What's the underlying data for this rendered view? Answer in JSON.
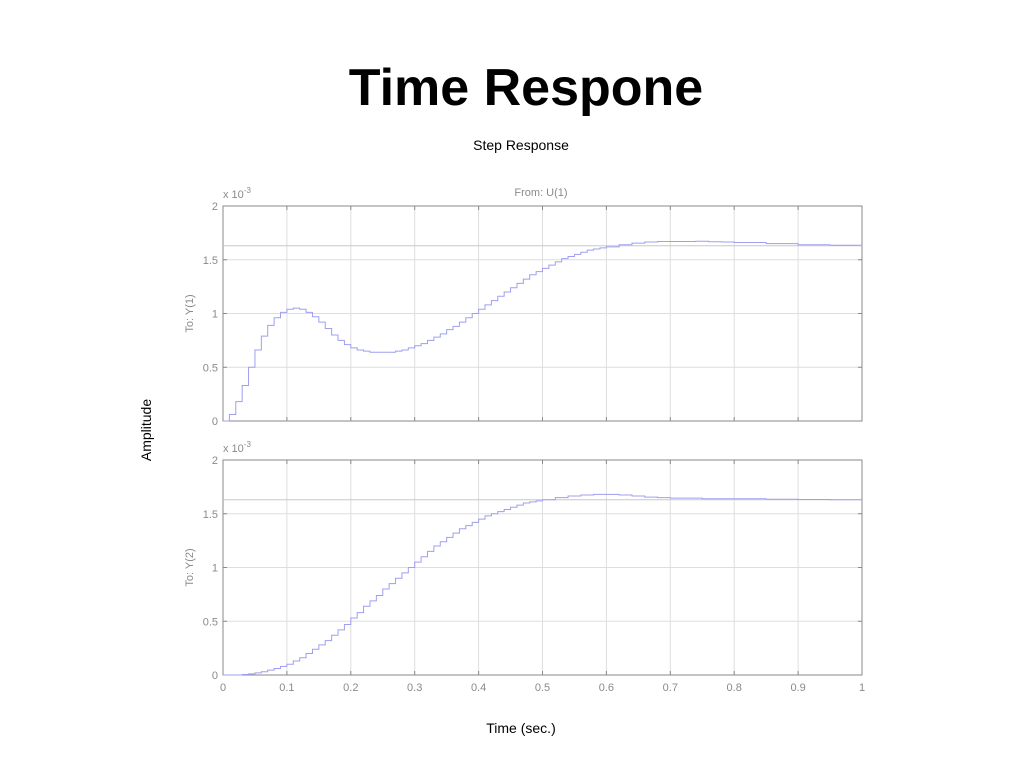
{
  "slide": {
    "title": "Time Respone"
  },
  "chart_data": {
    "type": "line",
    "style": "step",
    "title": "Step Response",
    "xlabel": "Time (sec.)",
    "ylabel": "Amplitude",
    "from_label": "From: U(1)",
    "exponent_label": "x 10",
    "exponent_power": "-3",
    "xlim": [
      0,
      1
    ],
    "xticks": [
      "0",
      "0.1",
      "0.2",
      "0.3",
      "0.4",
      "0.5",
      "0.6",
      "0.7",
      "0.8",
      "0.9",
      "1"
    ],
    "ylim": [
      0,
      2
    ],
    "yticks": [
      "0",
      "0.5",
      "1",
      "1.5",
      "2"
    ],
    "y_scale": "x 10^-3",
    "grid": true,
    "colors": {
      "series": "#9f9ff0",
      "grid": "#dedede",
      "axis": "#8a8a8a",
      "reference": "#c8c8c8"
    },
    "series": [
      {
        "name": "To: Y(1)",
        "steady_state": 1.63,
        "x": [
          0,
          0.01,
          0.02,
          0.03,
          0.04,
          0.05,
          0.06,
          0.07,
          0.08,
          0.09,
          0.1,
          0.11,
          0.12,
          0.13,
          0.14,
          0.15,
          0.16,
          0.17,
          0.18,
          0.19,
          0.2,
          0.21,
          0.22,
          0.23,
          0.24,
          0.25,
          0.26,
          0.27,
          0.28,
          0.29,
          0.3,
          0.31,
          0.32,
          0.33,
          0.34,
          0.35,
          0.36,
          0.37,
          0.38,
          0.39,
          0.4,
          0.41,
          0.42,
          0.43,
          0.44,
          0.45,
          0.46,
          0.47,
          0.48,
          0.49,
          0.5,
          0.51,
          0.52,
          0.53,
          0.54,
          0.55,
          0.56,
          0.57,
          0.58,
          0.59,
          0.6,
          0.62,
          0.64,
          0.66,
          0.68,
          0.7,
          0.72,
          0.74,
          0.76,
          0.78,
          0.8,
          0.85,
          0.9,
          0.95,
          1.0
        ],
        "y": [
          0,
          0.06,
          0.18,
          0.33,
          0.5,
          0.66,
          0.79,
          0.89,
          0.96,
          1.01,
          1.04,
          1.05,
          1.04,
          1.01,
          0.97,
          0.92,
          0.86,
          0.8,
          0.75,
          0.71,
          0.68,
          0.66,
          0.65,
          0.64,
          0.64,
          0.64,
          0.64,
          0.65,
          0.66,
          0.68,
          0.7,
          0.72,
          0.75,
          0.78,
          0.81,
          0.85,
          0.88,
          0.92,
          0.96,
          1.0,
          1.04,
          1.08,
          1.12,
          1.16,
          1.2,
          1.24,
          1.28,
          1.32,
          1.36,
          1.39,
          1.42,
          1.45,
          1.48,
          1.51,
          1.53,
          1.55,
          1.57,
          1.59,
          1.6,
          1.61,
          1.62,
          1.64,
          1.655,
          1.665,
          1.67,
          1.67,
          1.67,
          1.672,
          1.668,
          1.665,
          1.66,
          1.65,
          1.64,
          1.635,
          1.63
        ]
      },
      {
        "name": "To: Y(2)",
        "steady_state": 1.63,
        "x": [
          0,
          0.01,
          0.02,
          0.03,
          0.04,
          0.05,
          0.06,
          0.07,
          0.08,
          0.09,
          0.1,
          0.11,
          0.12,
          0.13,
          0.14,
          0.15,
          0.16,
          0.17,
          0.18,
          0.19,
          0.2,
          0.21,
          0.22,
          0.23,
          0.24,
          0.25,
          0.26,
          0.27,
          0.28,
          0.29,
          0.3,
          0.31,
          0.32,
          0.33,
          0.34,
          0.35,
          0.36,
          0.37,
          0.38,
          0.39,
          0.4,
          0.41,
          0.42,
          0.43,
          0.44,
          0.45,
          0.46,
          0.47,
          0.48,
          0.49,
          0.5,
          0.52,
          0.54,
          0.56,
          0.58,
          0.6,
          0.62,
          0.64,
          0.66,
          0.68,
          0.7,
          0.75,
          0.8,
          0.85,
          0.9,
          0.95,
          1.0
        ],
        "y": [
          0,
          0.0,
          0.0,
          0.005,
          0.01,
          0.02,
          0.03,
          0.045,
          0.06,
          0.08,
          0.1,
          0.13,
          0.16,
          0.2,
          0.24,
          0.28,
          0.32,
          0.37,
          0.42,
          0.47,
          0.53,
          0.58,
          0.64,
          0.69,
          0.74,
          0.8,
          0.85,
          0.9,
          0.95,
          1.0,
          1.05,
          1.1,
          1.15,
          1.2,
          1.24,
          1.28,
          1.32,
          1.36,
          1.39,
          1.42,
          1.45,
          1.48,
          1.5,
          1.52,
          1.54,
          1.56,
          1.58,
          1.6,
          1.61,
          1.62,
          1.63,
          1.65,
          1.665,
          1.675,
          1.68,
          1.68,
          1.675,
          1.665,
          1.655,
          1.65,
          1.645,
          1.64,
          1.64,
          1.635,
          1.632,
          1.63,
          1.63
        ]
      }
    ]
  }
}
